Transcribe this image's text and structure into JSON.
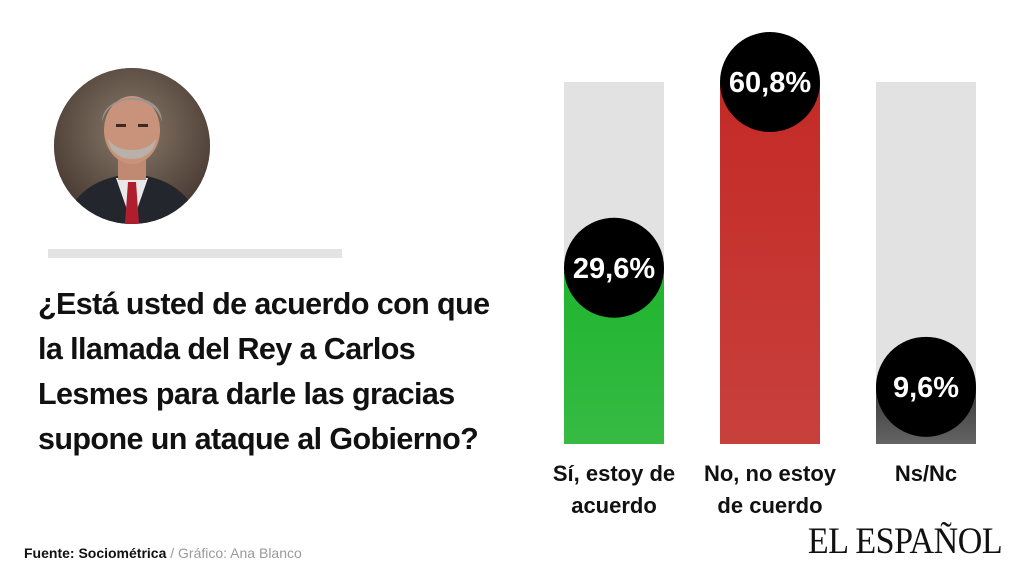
{
  "question": "¿Está usted de acuerdo con que\nla llamada del Rey  a Carlos\nLesmes para darle las gracias\nsupone un  ataque al Gobierno?",
  "source": {
    "label": "Fuente: Sociométrica",
    "separator": " / ",
    "credit": "Gráfico: Ana Blanco"
  },
  "brand": "EL ESPAÑOL",
  "portrait_icon": "person-portrait-icon",
  "chart_data": {
    "type": "bar",
    "categories": [
      "Sí, estoy de\nacuerdo",
      "No, no estoy\nde cuerdo",
      "Ns/Nc"
    ],
    "values": [
      29.6,
      60.8,
      9.6
    ],
    "value_labels": [
      "29,6%",
      "60,8%",
      "9,6%"
    ],
    "ylim": [
      0,
      60.8
    ],
    "colors": [
      "#1fb52e",
      "#c42a26",
      "#3a3a3a"
    ],
    "track_color": "#e2e2e2",
    "bubble_color": "#000000",
    "grid": false,
    "legend": "none"
  }
}
